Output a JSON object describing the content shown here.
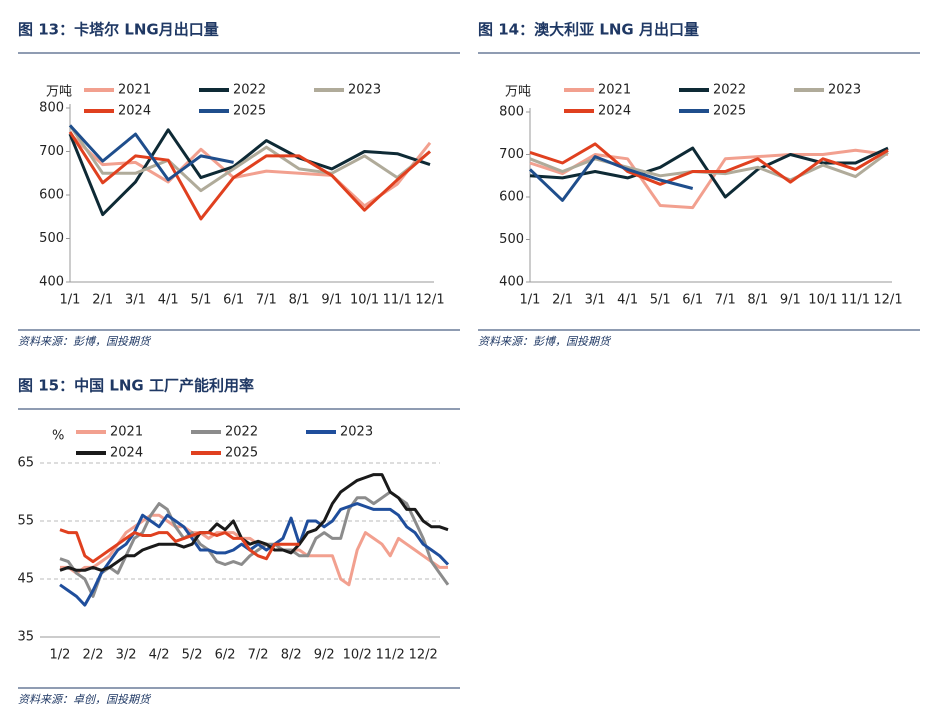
{
  "chart_data": [
    {
      "type": "line",
      "title": "图 13：卡塔尔 LNG月出口量",
      "unit": "万吨",
      "source": "资料来源：彭博，国投期货",
      "categories": [
        "1/1",
        "2/1",
        "3/1",
        "4/1",
        "5/1",
        "6/1",
        "7/1",
        "8/1",
        "9/1",
        "10/1",
        "11/1",
        "12/1"
      ],
      "ylim": [
        400,
        800
      ],
      "yticks": [
        400,
        500,
        600,
        700,
        800
      ],
      "grid": false,
      "series": [
        {
          "name": "2021",
          "color": "#f2a08f",
          "values": [
            740,
            670,
            675,
            630,
            705,
            640,
            655,
            650,
            645,
            575,
            625,
            720
          ]
        },
        {
          "name": "2022",
          "color": "#0e2a35",
          "values": [
            740,
            555,
            630,
            750,
            640,
            665,
            725,
            685,
            660,
            700,
            695,
            670
          ]
        },
        {
          "name": "2023",
          "color": "#b0ab9a",
          "values": [
            760,
            650,
            650,
            680,
            610,
            660,
            710,
            660,
            650,
            690,
            640,
            700
          ]
        },
        {
          "name": "2024",
          "color": "#e0401f",
          "values": [
            745,
            628,
            690,
            680,
            545,
            640,
            690,
            690,
            645,
            565,
            635,
            700
          ]
        },
        {
          "name": "2025",
          "color": "#1f4e8c",
          "values": [
            760,
            678,
            740,
            635,
            690,
            675,
            null,
            null,
            null,
            null,
            null,
            null
          ]
        }
      ]
    },
    {
      "type": "line",
      "title": "图 14：澳大利亚 LNG 月出口量",
      "unit": "万吨",
      "source": "资料来源：彭博，国投期货",
      "categories": [
        "1/1",
        "2/1",
        "3/1",
        "4/1",
        "5/1",
        "6/1",
        "7/1",
        "8/1",
        "9/1",
        "10/1",
        "11/1",
        "12/1"
      ],
      "ylim": [
        400,
        800
      ],
      "yticks": [
        400,
        500,
        600,
        700,
        800
      ],
      "grid": false,
      "series": [
        {
          "name": "2021",
          "color": "#f2a08f",
          "values": [
            680,
            655,
            700,
            690,
            580,
            575,
            690,
            695,
            700,
            700,
            710,
            700
          ]
        },
        {
          "name": "2022",
          "color": "#0e2a35",
          "values": [
            650,
            645,
            660,
            645,
            670,
            715,
            600,
            665,
            700,
            680,
            680,
            715
          ]
        },
        {
          "name": "2023",
          "color": "#b0ab9a",
          "values": [
            690,
            660,
            690,
            670,
            650,
            660,
            655,
            670,
            640,
            675,
            648,
            705
          ]
        },
        {
          "name": "2024",
          "color": "#e0401f",
          "values": [
            705,
            680,
            725,
            660,
            630,
            660,
            660,
            690,
            635,
            690,
            665,
            710
          ]
        },
        {
          "name": "2025",
          "color": "#1f4e8c",
          "values": [
            665,
            592,
            695,
            665,
            640,
            620,
            null,
            null,
            null,
            null,
            null,
            null
          ]
        }
      ]
    },
    {
      "type": "line",
      "title": "图 15：中国 LNG 工厂产能利用率",
      "unit": "%",
      "source": "资料来源：卓创，国投期货",
      "categories": [
        "1/2",
        null,
        null,
        null,
        "2/2",
        null,
        null,
        null,
        "3/2",
        null,
        null,
        null,
        "4/2",
        null,
        null,
        null,
        "5/2",
        null,
        null,
        null,
        "6/2",
        null,
        null,
        null,
        "7/2",
        null,
        null,
        null,
        "8/2",
        null,
        null,
        null,
        "9/2",
        null,
        null,
        null,
        "10/2",
        null,
        null,
        null,
        "11/2",
        null,
        null,
        null,
        "12/2",
        null,
        null,
        null
      ],
      "ylim": [
        35,
        65
      ],
      "yticks": [
        35,
        45,
        55,
        65
      ],
      "grid": true,
      "series": [
        {
          "name": "2021",
          "color": "#f2a08f",
          "values": [
            47,
            47,
            46,
            47,
            47,
            48,
            49,
            51,
            53,
            54,
            55,
            56,
            56,
            55,
            54,
            54,
            53,
            53,
            52,
            53,
            53,
            53,
            52,
            52,
            51,
            51,
            50,
            50,
            50,
            50,
            49,
            49,
            49,
            49,
            45,
            44,
            50,
            53,
            52,
            51,
            49,
            52,
            51,
            50,
            49,
            48,
            47,
            47
          ]
        },
        {
          "name": "2022",
          "color": "#8c8c8c",
          "values": [
            48.5,
            48,
            46,
            45,
            42,
            46,
            47,
            46,
            49,
            52,
            53,
            56,
            58,
            57,
            54,
            52,
            53,
            51,
            50,
            48,
            47.5,
            48,
            47.5,
            49,
            50,
            51,
            51,
            50,
            50,
            49,
            49,
            52,
            53,
            52,
            52,
            57,
            59,
            59,
            58,
            59,
            60,
            59,
            58,
            55,
            52,
            48,
            46,
            44
          ]
        },
        {
          "name": "2023",
          "color": "#1f4e9c",
          "values": [
            44,
            43,
            42,
            40.5,
            43,
            46,
            48,
            50,
            51,
            53,
            56,
            55,
            54,
            56,
            55,
            54,
            52,
            50,
            50,
            49.5,
            49.5,
            50,
            51,
            50,
            51,
            50,
            51,
            52,
            55.5,
            51,
            55,
            55,
            54,
            55,
            57,
            57.5,
            58,
            57.5,
            57,
            57,
            57,
            56,
            54,
            53,
            51,
            50,
            49,
            47.5
          ]
        },
        {
          "name": "2024",
          "color": "#1a1a1a",
          "values": [
            46.5,
            47,
            46.5,
            46.5,
            47,
            46.5,
            47,
            48,
            49,
            49,
            50,
            50.5,
            51,
            51,
            51,
            50.5,
            51,
            53,
            53,
            54.5,
            53.5,
            55,
            52,
            51,
            51.5,
            51,
            50,
            50,
            49.5,
            51,
            53,
            53.5,
            55,
            58,
            60,
            61,
            62,
            62.5,
            63,
            63,
            60,
            59,
            57,
            57,
            55,
            54,
            54,
            53.5
          ]
        },
        {
          "name": "2025",
          "color": "#e0401f",
          "values": [
            53.5,
            53,
            53,
            49,
            48,
            49,
            50,
            51,
            52,
            53,
            52.5,
            52.5,
            53,
            53,
            51.5,
            52,
            52.5,
            53,
            53,
            52.5,
            53,
            52,
            52,
            50,
            49,
            48.5,
            51,
            51,
            51,
            51,
            null,
            null,
            null,
            null,
            null,
            null,
            null,
            null,
            null,
            null,
            null,
            null,
            null,
            null,
            null,
            null,
            null,
            null
          ]
        }
      ]
    }
  ]
}
